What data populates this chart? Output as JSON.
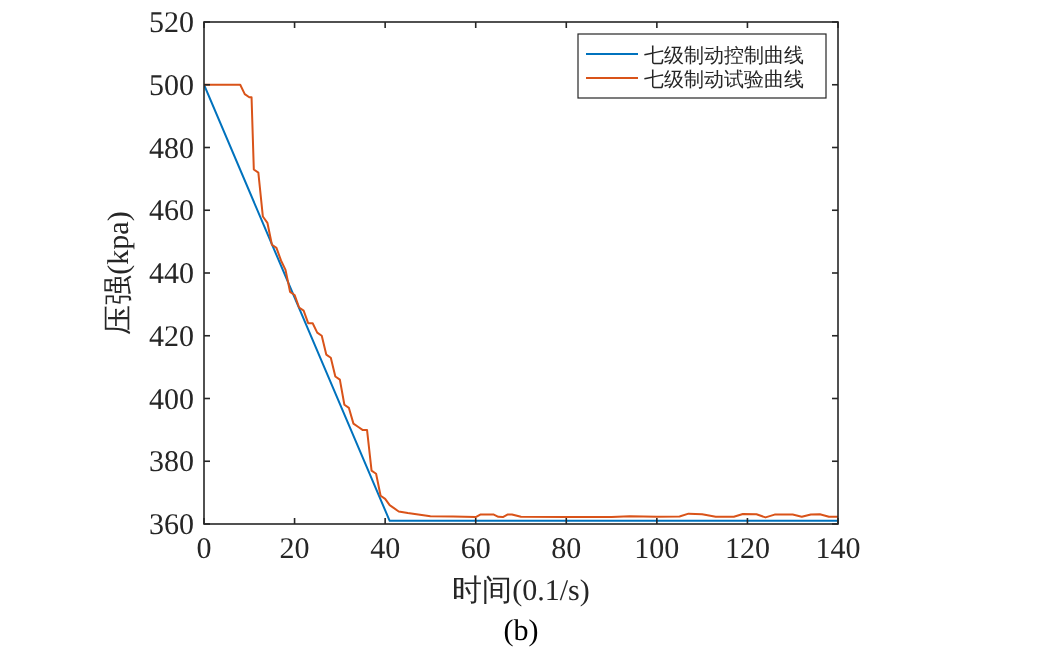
{
  "chart_data": {
    "type": "line",
    "xlabel": "时间(0.1/s)",
    "ylabel": "压强(kpa)",
    "annotations": [
      "(b)"
    ],
    "xlim": [
      0,
      140
    ],
    "ylim": [
      360,
      520
    ],
    "xticks": [
      0,
      20,
      40,
      60,
      80,
      100,
      120,
      140
    ],
    "yticks": [
      360,
      380,
      400,
      420,
      440,
      460,
      480,
      500,
      520
    ],
    "legend": "top right",
    "grid": false,
    "marker": "none",
    "line_style": "solid",
    "series": [
      {
        "name": "七级制动控制曲线",
        "color": "#0072bd",
        "x": [
          0,
          41,
          140
        ],
        "values": [
          500,
          361,
          361
        ]
      },
      {
        "name": "七级制动试验曲线",
        "color": "#d95319",
        "x": [
          0,
          8,
          9,
          10,
          10.5,
          11,
          12,
          13,
          14,
          15,
          16,
          17,
          18,
          19,
          20,
          21,
          22,
          23,
          24,
          25,
          26,
          27,
          28,
          29,
          30,
          31,
          32,
          33,
          34,
          35,
          36,
          37,
          38,
          39,
          40,
          41,
          43,
          45,
          50,
          55,
          60,
          61,
          64,
          65,
          66,
          67,
          68,
          70,
          80,
          90,
          94,
          100,
          105,
          107,
          110,
          113,
          117,
          119,
          122,
          124,
          126,
          130,
          132,
          134,
          136,
          138,
          140
        ],
        "values": [
          500,
          500,
          497,
          496,
          496,
          473,
          472,
          458,
          456,
          449,
          448,
          444,
          441,
          434,
          433,
          429,
          428,
          424,
          424,
          421,
          420,
          414,
          413,
          407,
          406,
          398,
          397,
          392,
          391,
          390,
          390,
          377,
          376,
          369,
          368,
          366,
          364,
          363.5,
          362.5,
          362.4,
          362.2,
          363,
          363,
          362.3,
          362.2,
          363,
          363,
          362.3,
          362.2,
          362.2,
          362.5,
          362.3,
          362.4,
          363.3,
          363.1,
          362.3,
          362.3,
          363.2,
          363.1,
          362.1,
          363,
          363,
          362.3,
          363,
          363.1,
          362.3,
          362.3
        ]
      }
    ]
  }
}
